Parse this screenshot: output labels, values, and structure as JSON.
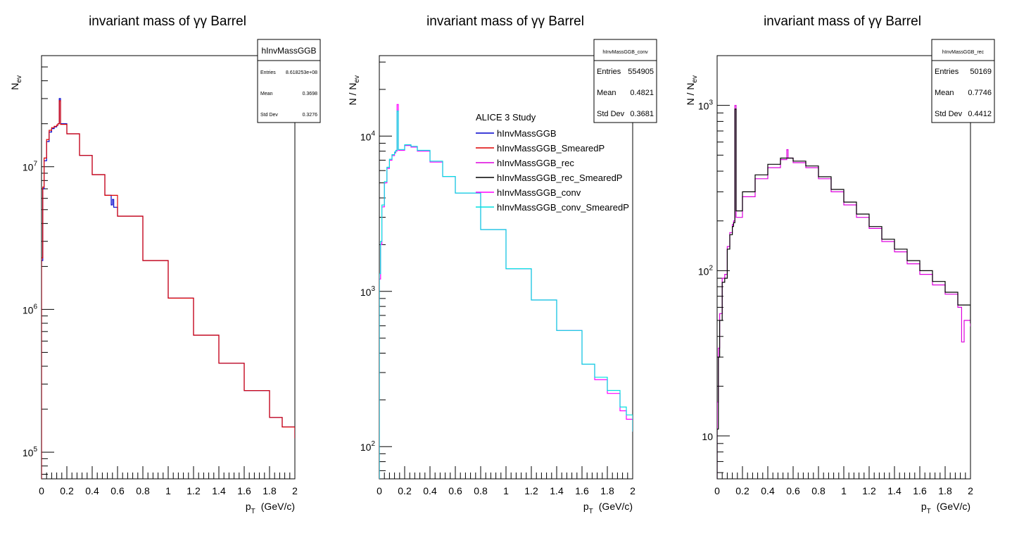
{
  "colors": {
    "hInvMassGGB": "#0000cc",
    "hInvMassGGB_SmearedP": "#dd0000",
    "hInvMassGGB_rec": "#dd00dd",
    "hInvMassGGB_rec_SmearedP": "#000000",
    "hInvMassGGB_conv": "#ff00ff",
    "hInvMassGGB_conv_SmearedP": "#00e0e0"
  },
  "chart_data": [
    {
      "type": "line",
      "title": "invariant mass of γγ Barrel",
      "xlabel": "p",
      "xlabel_sub": "T",
      "xlabel_unit": "(GeV/c)",
      "ylabel": "N",
      "ylabel_sub": "ev",
      "log_y": true,
      "xlim": [
        0,
        2
      ],
      "ylim": [
        65000,
        60000000
      ],
      "x_ticks": [
        "0",
        "0.2",
        "0.4",
        "0.6",
        "0.8",
        "1",
        "1.2",
        "1.4",
        "1.6",
        "1.8",
        "2"
      ],
      "y_ticks": [
        {
          "value": 10000000,
          "base": "10",
          "exp": "7"
        },
        {
          "value": 1000000,
          "base": "10",
          "exp": "6"
        },
        {
          "value": 100000,
          "base": "10",
          "exp": "5"
        }
      ],
      "stats": {
        "name": "hInvMassGGB",
        "rows": [
          {
            "label": "Entries",
            "value": "8.618253e+08"
          },
          {
            "label": "Mean",
            "value": "0.3698"
          },
          {
            "label": "Std Dev",
            "value": "0.3276"
          }
        ]
      },
      "series": [
        {
          "key": "hInvMassGGB",
          "x": [
            0.0,
            0.01,
            0.02,
            0.04,
            0.06,
            0.08,
            0.1,
            0.12,
            0.13,
            0.14,
            0.15,
            0.2,
            0.3,
            0.4,
            0.5,
            0.55,
            0.56,
            0.57,
            0.6,
            0.8,
            1.0,
            1.2,
            1.4,
            1.6,
            1.8,
            1.9,
            2.0
          ],
          "y": [
            2200000,
            7000000,
            11000000,
            15000000,
            17500000,
            18500000,
            19000000,
            19500000,
            20000000,
            30000000,
            20000000,
            17000000,
            12000000,
            8800000,
            6300000,
            5400000,
            5900000,
            5200000,
            4500000,
            2200000,
            1200000,
            660000,
            420000,
            270000,
            175000,
            150000,
            125000
          ]
        },
        {
          "key": "hInvMassGGB_SmearedP",
          "x": [
            0.0,
            0.01,
            0.02,
            0.04,
            0.06,
            0.08,
            0.1,
            0.12,
            0.13,
            0.14,
            0.15,
            0.2,
            0.3,
            0.4,
            0.5,
            0.6,
            0.8,
            1.0,
            1.2,
            1.4,
            1.6,
            1.8,
            1.9,
            2.0
          ],
          "y": [
            2300000,
            7200000,
            11500000,
            15500000,
            18000000,
            18800000,
            19200000,
            19600000,
            20000000,
            29000000,
            19800000,
            17000000,
            12000000,
            8800000,
            6300000,
            4500000,
            2200000,
            1200000,
            660000,
            420000,
            270000,
            175000,
            150000,
            125000
          ]
        }
      ]
    },
    {
      "type": "line",
      "title": "invariant mass of γγ Barrel",
      "xlabel": "p",
      "xlabel_sub": "T",
      "xlabel_unit": "(GeV/c)",
      "ylabel": "N / N",
      "ylabel_sub": "ev",
      "log_y": true,
      "xlim": [
        0,
        2
      ],
      "ylim": [
        62,
        33000
      ],
      "x_ticks": [
        "0",
        "0.2",
        "0.4",
        "0.6",
        "0.8",
        "1",
        "1.2",
        "1.4",
        "1.6",
        "1.8",
        "2"
      ],
      "y_ticks": [
        {
          "value": 10000,
          "base": "10",
          "exp": "4"
        },
        {
          "value": 1000,
          "base": "10",
          "exp": "3"
        },
        {
          "value": 100,
          "base": "10",
          "exp": "2"
        }
      ],
      "stats": {
        "name": "hInvMassGGB_conv",
        "rows": [
          {
            "label": "Entries",
            "value": "554905"
          },
          {
            "label": "Mean",
            "value": "0.4821"
          },
          {
            "label": "Std Dev",
            "value": "0.3681"
          }
        ]
      },
      "legend": {
        "header": "ALICE 3 Study",
        "entries": [
          "hInvMassGGB",
          "hInvMassGGB_SmearedP",
          "hInvMassGGB_rec",
          "hInvMassGGB_rec_SmearedP",
          "hInvMassGGB_conv",
          "hInvMassGGB_conv_SmearedP"
        ]
      },
      "series": [
        {
          "key": "hInvMassGGB_conv",
          "x": [
            0.0,
            0.01,
            0.02,
            0.04,
            0.06,
            0.08,
            0.1,
            0.12,
            0.13,
            0.14,
            0.15,
            0.2,
            0.25,
            0.3,
            0.4,
            0.5,
            0.6,
            0.8,
            1.0,
            1.2,
            1.4,
            1.6,
            1.7,
            1.8,
            1.9,
            1.95,
            2.0
          ],
          "y": [
            1200,
            2000,
            3500,
            5000,
            6200,
            7000,
            7500,
            7800,
            8000,
            16000,
            8100,
            8700,
            8500,
            8000,
            6800,
            5500,
            4300,
            2500,
            1400,
            880,
            560,
            340,
            270,
            220,
            170,
            150,
            125
          ]
        },
        {
          "key": "hInvMassGGB_conv_SmearedP",
          "x": [
            0.0,
            0.01,
            0.02,
            0.04,
            0.06,
            0.08,
            0.1,
            0.12,
            0.13,
            0.14,
            0.15,
            0.2,
            0.25,
            0.3,
            0.4,
            0.5,
            0.6,
            0.8,
            1.0,
            1.2,
            1.4,
            1.6,
            1.7,
            1.8,
            1.9,
            1.95,
            2.0
          ],
          "y": [
            1300,
            2100,
            3600,
            5100,
            6300,
            7100,
            7600,
            7900,
            8100,
            14500,
            8200,
            8800,
            8600,
            8100,
            6900,
            5500,
            4300,
            2500,
            1400,
            880,
            560,
            340,
            280,
            230,
            180,
            160,
            125
          ]
        }
      ]
    },
    {
      "type": "line",
      "title": "invariant mass of γγ Barrel",
      "xlabel": "p",
      "xlabel_sub": "T",
      "xlabel_unit": "(GeV/c)",
      "ylabel": "N / N",
      "ylabel_sub": "ev",
      "log_y": true,
      "xlim": [
        0,
        2
      ],
      "ylim": [
        5.5,
        2000
      ],
      "x_ticks": [
        "0",
        "0.2",
        "0.4",
        "0.6",
        "0.8",
        "1",
        "1.2",
        "1.4",
        "1.6",
        "1.8",
        "2"
      ],
      "y_ticks": [
        {
          "value": 1000,
          "base": "10",
          "exp": "3"
        },
        {
          "value": 100,
          "base": "10",
          "exp": "2"
        },
        {
          "value": 10,
          "base": "10",
          "exp": ""
        }
      ],
      "stats": {
        "name": "hInvMassGGB_rec",
        "rows": [
          {
            "label": "Entries",
            "value": "50169"
          },
          {
            "label": "Mean",
            "value": "0.7746"
          },
          {
            "label": "Std Dev",
            "value": "0.4412"
          }
        ]
      },
      "series": [
        {
          "key": "hInvMassGGB_rec",
          "x": [
            0.0,
            0.01,
            0.02,
            0.04,
            0.06,
            0.08,
            0.1,
            0.12,
            0.13,
            0.14,
            0.15,
            0.2,
            0.3,
            0.4,
            0.5,
            0.55,
            0.56,
            0.6,
            0.7,
            0.8,
            0.9,
            1.0,
            1.1,
            1.2,
            1.3,
            1.4,
            1.5,
            1.6,
            1.7,
            1.8,
            1.9,
            1.93,
            1.95,
            2.0
          ],
          "y": [
            16,
            34,
            55,
            90,
            95,
            140,
            170,
            190,
            200,
            1000,
            210,
            280,
            360,
            420,
            470,
            540,
            480,
            450,
            420,
            360,
            300,
            250,
            210,
            180,
            150,
            130,
            110,
            95,
            82,
            72,
            60,
            37,
            50,
            46
          ]
        },
        {
          "key": "hInvMassGGB_rec_SmearedP",
          "x": [
            0.0,
            0.01,
            0.02,
            0.04,
            0.06,
            0.08,
            0.1,
            0.12,
            0.13,
            0.14,
            0.15,
            0.2,
            0.3,
            0.4,
            0.5,
            0.6,
            0.7,
            0.8,
            0.9,
            1.0,
            1.1,
            1.2,
            1.3,
            1.4,
            1.5,
            1.6,
            1.7,
            1.8,
            1.9,
            2.0
          ],
          "y": [
            11,
            30,
            50,
            85,
            90,
            135,
            165,
            185,
            195,
            950,
            230,
            300,
            380,
            440,
            480,
            460,
            430,
            370,
            310,
            260,
            220,
            185,
            155,
            135,
            115,
            100,
            86,
            74,
            62,
            48
          ]
        }
      ]
    }
  ]
}
